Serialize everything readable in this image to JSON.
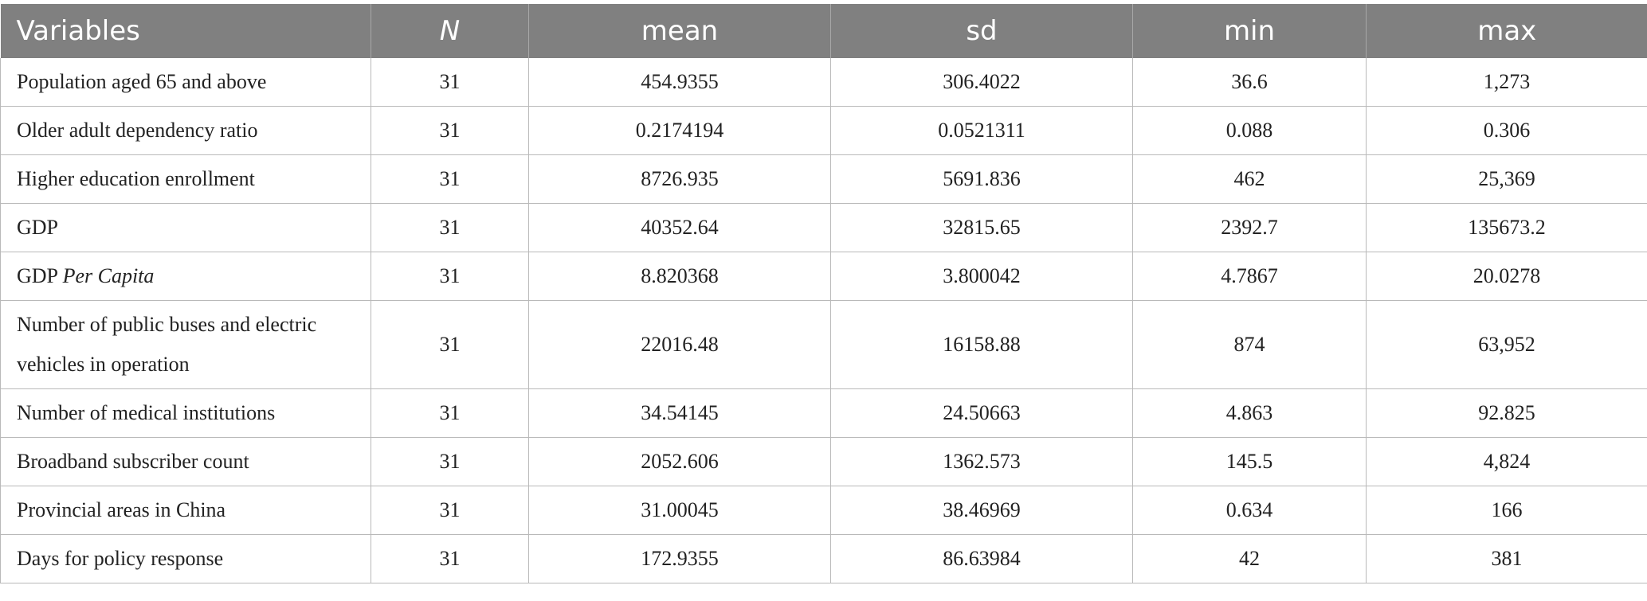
{
  "table": {
    "headers": {
      "variables": "Variables",
      "n": "N",
      "mean": "mean",
      "sd": "sd",
      "min": "min",
      "max": "max"
    },
    "rows": [
      {
        "variable": "Population aged 65 and above",
        "n": "31",
        "mean": "454.9355",
        "sd": "306.4022",
        "min": "36.6",
        "max": "1,273"
      },
      {
        "variable": "Older adult dependency ratio",
        "n": "31",
        "mean": "0.2174194",
        "sd": "0.0521311",
        "min": "0.088",
        "max": "0.306"
      },
      {
        "variable": "Higher education enrollment",
        "n": "31",
        "mean": "8726.935",
        "sd": "5691.836",
        "min": "462",
        "max": "25,369"
      },
      {
        "variable": "GDP",
        "n": "31",
        "mean": "40352.64",
        "sd": "32815.65",
        "min": "2392.7",
        "max": "135673.2"
      },
      {
        "variable": "GDP",
        "variable_italic": "Per Capita",
        "n": "31",
        "mean": "8.820368",
        "sd": "3.800042",
        "min": "4.7867",
        "max": "20.0278"
      },
      {
        "variable": "Number of public buses and electric vehicles in operation",
        "n": "31",
        "mean": "22016.48",
        "sd": "16158.88",
        "min": "874",
        "max": "63,952"
      },
      {
        "variable": "Number of medical institutions",
        "n": "31",
        "mean": "34.54145",
        "sd": "24.50663",
        "min": "4.863",
        "max": "92.825"
      },
      {
        "variable": "Broadband subscriber count",
        "n": "31",
        "mean": "2052.606",
        "sd": "1362.573",
        "min": "145.5",
        "max": "4,824"
      },
      {
        "variable": "Provincial areas in China",
        "n": "31",
        "mean": "31.00045",
        "sd": "38.46969",
        "min": "0.634",
        "max": "166"
      },
      {
        "variable": "Days for policy response",
        "n": "31",
        "mean": "172.9355",
        "sd": "86.63984",
        "min": "42",
        "max": "381"
      }
    ]
  }
}
